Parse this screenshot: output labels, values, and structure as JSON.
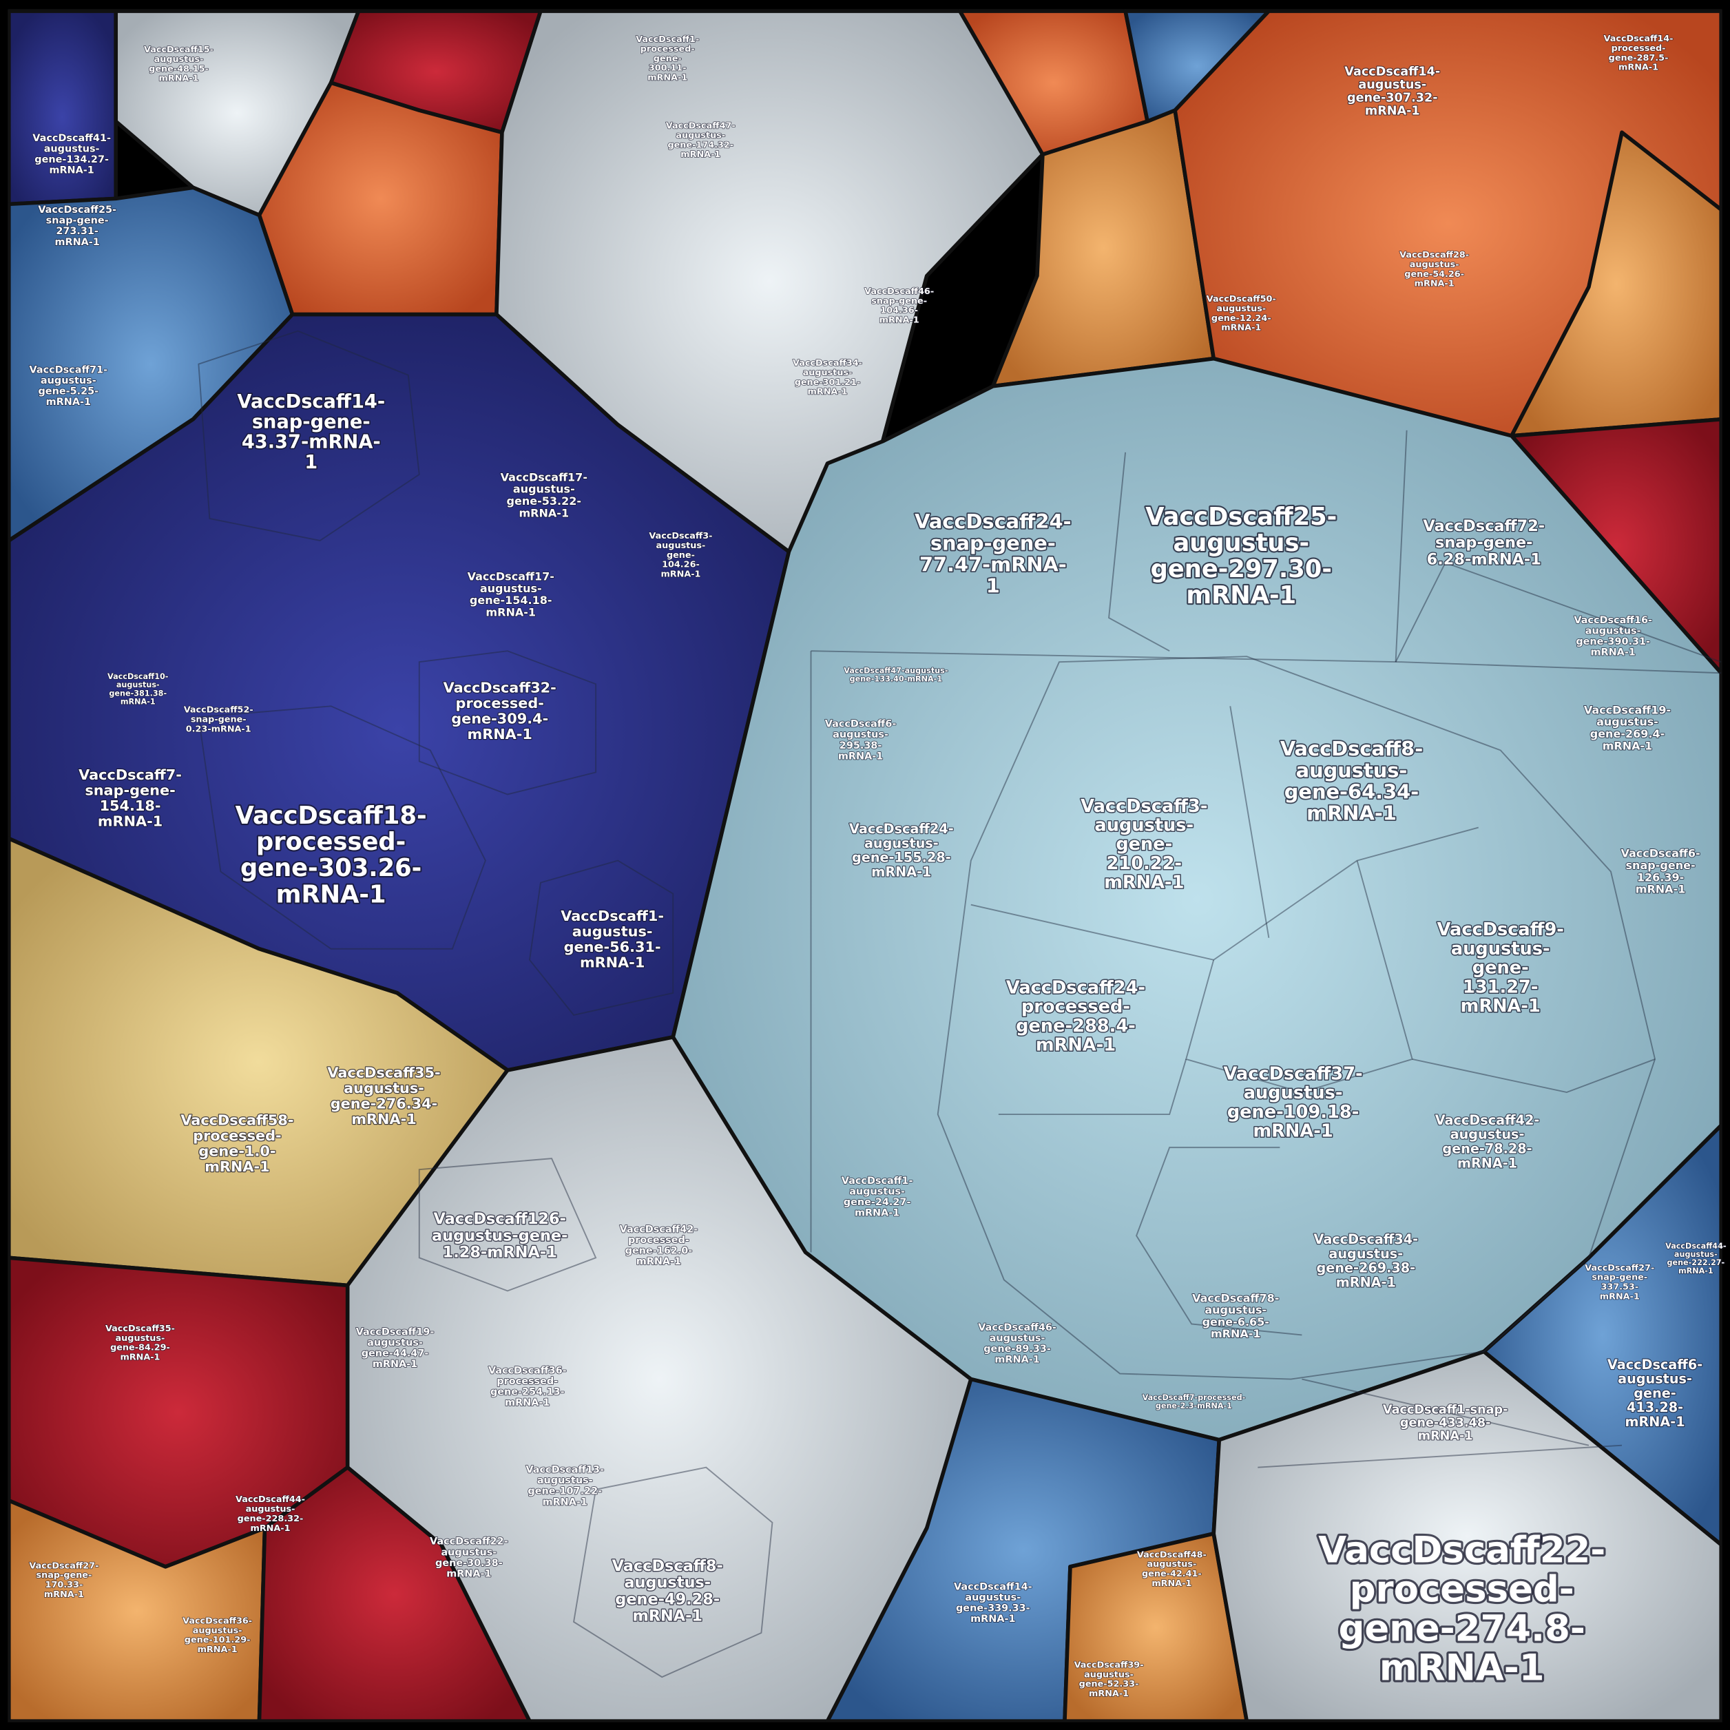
{
  "nodes": [
    {
      "lines": [
        "VaccDscaff22-",
        "processed-",
        "gene-274.8-",
        "mRNA-1"
      ]
    },
    {
      "lines": [
        "VaccDscaff18-",
        "processed-",
        "gene-303.26-",
        "mRNA-1"
      ]
    },
    {
      "lines": [
        "VaccDscaff25-",
        "augustus-",
        "gene-297.30-",
        "mRNA-1"
      ]
    },
    {
      "lines": [
        "VaccDscaff24-",
        "snap-gene-",
        "77.47-mRNA-",
        "1"
      ]
    },
    {
      "lines": [
        "VaccDscaff14-",
        "snap-gene-",
        "43.37-mRNA-",
        "1"
      ]
    },
    {
      "lines": [
        "VaccDscaff8-",
        "augustus-",
        "gene-64.34-",
        "mRNA-1"
      ]
    },
    {
      "lines": [
        "VaccDscaff3-",
        "augustus-",
        "gene-",
        "210.22-",
        "mRNA-1"
      ]
    },
    {
      "lines": [
        "VaccDscaff9-",
        "augustus-",
        "gene-",
        "131.27-",
        "mRNA-1"
      ]
    },
    {
      "lines": [
        "VaccDscaff24-",
        "processed-",
        "gene-288.4-",
        "mRNA-1"
      ]
    },
    {
      "lines": [
        "VaccDscaff37-",
        "augustus-",
        "gene-109.18-",
        "mRNA-1"
      ]
    },
    {
      "lines": [
        "VaccDscaff72-",
        "snap-gene-",
        "6.28-mRNA-1"
      ]
    },
    {
      "lines": [
        "VaccDscaff32-",
        "processed-",
        "gene-309.4-",
        "mRNA-1"
      ]
    },
    {
      "lines": [
        "VaccDscaff7-",
        "snap-gene-",
        "154.18-",
        "mRNA-1"
      ]
    },
    {
      "lines": [
        "VaccDscaff1-",
        "augustus-",
        "gene-56.31-",
        "mRNA-1"
      ]
    },
    {
      "lines": [
        "VaccDscaff35-",
        "augustus-",
        "gene-276.34-",
        "mRNA-1"
      ]
    },
    {
      "lines": [
        "VaccDscaff58-",
        "processed-",
        "gene-1.0-",
        "mRNA-1"
      ]
    },
    {
      "lines": [
        "VaccDscaff126-",
        "augustus-gene-",
        "1.28-mRNA-1"
      ]
    },
    {
      "lines": [
        "VaccDscaff8-",
        "augustus-",
        "gene-49.28-",
        "mRNA-1"
      ]
    },
    {
      "lines": [
        "VaccDscaff24-",
        "augustus-",
        "gene-155.28-",
        "mRNA-1"
      ]
    },
    {
      "lines": [
        "VaccDscaff42-",
        "augustus-",
        "gene-78.28-",
        "mRNA-1"
      ]
    },
    {
      "lines": [
        "VaccDscaff34-",
        "augustus-",
        "gene-269.38-",
        "mRNA-1"
      ]
    },
    {
      "lines": [
        "VaccDscaff6-",
        "augustus-",
        "gene-",
        "413.28-",
        "mRNA-1"
      ]
    },
    {
      "lines": [
        "VaccDscaff1-snap-",
        "gene-433.48-",
        "mRNA-1"
      ]
    },
    {
      "lines": [
        "VaccDscaff14-",
        "augustus-",
        "gene-307.32-",
        "mRNA-1"
      ]
    },
    {
      "lines": [
        "VaccDscaff17-",
        "augustus-",
        "gene-53.22-",
        "mRNA-1"
      ]
    },
    {
      "lines": [
        "VaccDscaff17-",
        "augustus-",
        "gene-154.18-",
        "mRNA-1"
      ]
    },
    {
      "lines": [
        "VaccDscaff19-",
        "augustus-",
        "gene-269.4-",
        "mRNA-1"
      ]
    },
    {
      "lines": [
        "VaccDscaff6-",
        "snap-gene-",
        "126.39-",
        "mRNA-1"
      ]
    },
    {
      "lines": [
        "VaccDscaff78-",
        "augustus-",
        "gene-6.65-",
        "mRNA-1"
      ]
    },
    {
      "lines": [
        "VaccDscaff6-",
        "augustus-",
        "295.38-",
        "mRNA-1"
      ]
    },
    {
      "lines": [
        "VaccDscaff41-",
        "augustus-",
        "gene-134.27-",
        "mRNA-1"
      ]
    },
    {
      "lines": [
        "VaccDscaff25-",
        "snap-gene-",
        "273.31-",
        "mRNA-1"
      ]
    },
    {
      "lines": [
        "VaccDscaff71-",
        "augustus-",
        "gene-5.25-",
        "mRNA-1"
      ]
    },
    {
      "lines": [
        "VaccDscaff16-",
        "augustus-",
        "gene-390.31-",
        "mRNA-1"
      ]
    },
    {
      "lines": [
        "VaccDscaff15-",
        "augustus-",
        "gene-48.15-",
        "mRNA-1"
      ]
    },
    {
      "lines": [
        "VaccDscaff13-",
        "augustus-",
        "gene-107.22-",
        "mRNA-1"
      ]
    },
    {
      "lines": [
        "VaccDscaff19-",
        "augustus-",
        "gene-44.47-",
        "mRNA-1"
      ]
    },
    {
      "lines": [
        "VaccDscaff36-",
        "processed-",
        "gene-254.13-",
        "mRNA-1"
      ]
    },
    {
      "lines": [
        "VaccDscaff42-",
        "processed-",
        "gene-162.0-",
        "mRNA-1"
      ]
    },
    {
      "lines": [
        "VaccDscaff22-",
        "augustus-",
        "gene-30.38-",
        "mRNA-1"
      ]
    },
    {
      "lines": [
        "VaccDscaff46-",
        "augustus-",
        "gene-89.33-",
        "mRNA-1"
      ]
    },
    {
      "lines": [
        "VaccDscaff1-",
        "augustus-",
        "gene-24.27-",
        "mRNA-1"
      ]
    },
    {
      "lines": [
        "VaccDscaff14-",
        "augustus-",
        "gene-339.33-",
        "mRNA-1"
      ]
    },
    {
      "lines": [
        "VaccDscaff27-",
        "snap-gene-",
        "337.53-",
        "mRNA-1"
      ]
    },
    {
      "lines": [
        "VaccDscaff44-",
        "augustus-",
        "gene-222.27-",
        "mRNA-1"
      ]
    },
    {
      "lines": [
        "VaccDscaff39-",
        "augustus-",
        "gene-52.33-",
        "mRNA-1"
      ]
    },
    {
      "lines": [
        "VaccDscaff48-",
        "augustus-",
        "gene-42.41-",
        "mRNA-1"
      ]
    },
    {
      "lines": [
        "VaccDscaff14-",
        "processed-",
        "gene-287.5-",
        "mRNA-1"
      ]
    },
    {
      "lines": [
        "VaccDscaff50-",
        "augustus-",
        "gene-12.24-",
        "mRNA-1"
      ]
    },
    {
      "lines": [
        "VaccDscaff28-",
        "augustus-",
        "gene-54.26-",
        "mRNA-1"
      ]
    },
    {
      "lines": [
        "VaccDscaff35-",
        "augustus-",
        "gene-84.29-",
        "mRNA-1"
      ]
    },
    {
      "lines": [
        "VaccDscaff44-",
        "augustus-",
        "gene-228.32-",
        "mRNA-1"
      ]
    },
    {
      "lines": [
        "VaccDscaff27-",
        "snap-gene-",
        "170.33-",
        "mRNA-1"
      ]
    },
    {
      "lines": [
        "VaccDscaff36-",
        "augustus-",
        "gene-101.29-",
        "mRNA-1"
      ]
    },
    {
      "lines": [
        "VaccDscaff34-",
        "augustus-",
        "gene-301.21-",
        "mRNA-1"
      ]
    },
    {
      "lines": [
        "VaccDscaff46-",
        "snap-gene-",
        "104.36-",
        "mRNA-1"
      ]
    },
    {
      "lines": [
        "VaccDscaff1-",
        "processed-",
        "gene-",
        "300.11-",
        "mRNA-1"
      ]
    },
    {
      "lines": [
        "VaccDscaff47-",
        "augustus-",
        "gene-174.32-",
        "mRNA-1"
      ]
    },
    {
      "lines": [
        "VaccDscaff3-",
        "augustus-",
        "gene-",
        "104.26-",
        "mRNA-1"
      ]
    },
    {
      "lines": [
        "VaccDscaff52-",
        "snap-gene-",
        "0.23-mRNA-1"
      ]
    },
    {
      "lines": [
        "VaccDscaff10-",
        "augustus-",
        "gene-381.38-",
        "mRNA-1"
      ]
    },
    {
      "lines": [
        "VaccDscaff7-processed-",
        "gene-2.3-mRNA-1"
      ]
    },
    {
      "lines": [
        "VaccDscaff47-augustus-",
        "gene-133.40-mRNA-1"
      ]
    }
  ]
}
